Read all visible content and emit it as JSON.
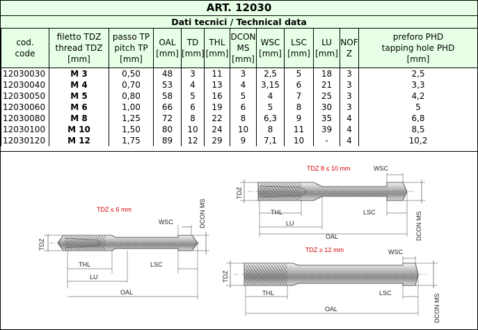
{
  "title": "ART. 12030",
  "subtitle": "Dati tecnici / Technical data",
  "columns": [
    {
      "lines": [
        "cod.",
        "code"
      ],
      "unit": ""
    },
    {
      "lines": [
        "filetto TDZ",
        "thread TDZ"
      ],
      "unit": "[mm]"
    },
    {
      "lines": [
        "passo TP",
        "pitch TP"
      ],
      "unit": "[mm]"
    },
    {
      "lines": [
        "OAL"
      ],
      "unit": "[mm]"
    },
    {
      "lines": [
        "TD"
      ],
      "unit": "[mm]"
    },
    {
      "lines": [
        "THL"
      ],
      "unit": "[mm]"
    },
    {
      "lines": [
        "DCON",
        "MS"
      ],
      "unit": "[mm]"
    },
    {
      "lines": [
        "WSC"
      ],
      "unit": "[mm]"
    },
    {
      "lines": [
        "LSC"
      ],
      "unit": "[mm]"
    },
    {
      "lines": [
        "LU"
      ],
      "unit": "[mm]"
    },
    {
      "lines": [
        "NOF",
        "Z"
      ],
      "unit": ""
    },
    {
      "lines": [
        "preforo PHD",
        "tapping hole PHD"
      ],
      "unit": "[mm]"
    }
  ],
  "rows": [
    [
      "12030030",
      "M 3",
      "0,50",
      "48",
      "3",
      "11",
      "3",
      "2,5",
      "5",
      "18",
      "3",
      "2,5"
    ],
    [
      "12030040",
      "M 4",
      "0,70",
      "53",
      "4",
      "13",
      "4",
      "3,15",
      "6",
      "21",
      "3",
      "3,3"
    ],
    [
      "12030050",
      "M 5",
      "0,80",
      "58",
      "5",
      "16",
      "5",
      "4",
      "7",
      "25",
      "3",
      "4,2"
    ],
    [
      "12030060",
      "M 6",
      "1,00",
      "66",
      "6",
      "19",
      "6",
      "5",
      "8",
      "30",
      "3",
      "5"
    ],
    [
      "12030080",
      "M 8",
      "1,25",
      "72",
      "8",
      "22",
      "8",
      "6,3",
      "9",
      "35",
      "4",
      "6,8"
    ],
    [
      "12030100",
      "M 10",
      "1,50",
      "80",
      "10",
      "24",
      "10",
      "8",
      "11",
      "39",
      "4",
      "8,5"
    ],
    [
      "12030120",
      "M 12",
      "1,75",
      "89",
      "12",
      "29",
      "9",
      "7,1",
      "10",
      "-",
      "4",
      "10,2"
    ]
  ],
  "drawings": {
    "small": {
      "caption": "TDZ ≤ 6 mm",
      "labels": {
        "tdz": "TDZ",
        "thl": "THL",
        "lu": "LU",
        "oal": "OAL",
        "lsc": "LSC",
        "wsc": "WSC",
        "dcon": "DCON MS"
      }
    },
    "medium": {
      "caption": "TDZ 8 ≤ 10 mm",
      "labels": {
        "tdz": "TDZ",
        "thl": "THL",
        "lu": "LU",
        "oal": "OAL",
        "lsc": "LSC",
        "wsc": "WSC",
        "dcon": "DCON MS"
      }
    },
    "large": {
      "caption": "TDZ ≥ 12 mm",
      "labels": {
        "tdz": "TDZ",
        "thl": "THL",
        "oal": "OAL",
        "lsc": "LSC",
        "wsc": "WSC",
        "dcon": "DCON MS"
      }
    }
  },
  "colors": {
    "header_bg": "#e6ffe6",
    "caption_red": "#d40000"
  }
}
